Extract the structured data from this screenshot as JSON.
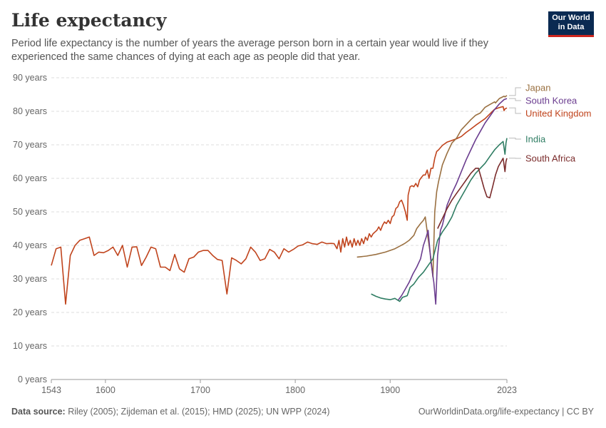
{
  "header": {
    "title": "Life expectancy",
    "subtitle": "Period life expectancy is the number of years the average person born in a certain year would live if they experienced the same chances of dying at each age as people did that year.",
    "logo_line1": "Our World",
    "logo_line2": "in Data"
  },
  "footer": {
    "source_label": "Data source:",
    "source_text": "Riley (2005); Zijdeman et al. (2015); HMD (2025); UN WPP (2024)",
    "url_text": "OurWorldinData.org/life-expectancy | CC BY"
  },
  "colors": {
    "japan": "#9a7041",
    "south_korea": "#6b3d8f",
    "united_kingdom": "#c0441d",
    "india": "#2f7d63",
    "south_africa": "#7a2b2b",
    "grid": "#dddddd",
    "axis_text": "#666666",
    "logo_bg": "#0a2a52",
    "logo_accent": "#ce261e"
  },
  "chart_data": {
    "type": "line",
    "title": "Life expectancy",
    "xlim": [
      1543,
      2023
    ],
    "ylim": [
      0,
      90
    ],
    "x_ticks": [
      {
        "value": 1543,
        "label": "1543"
      },
      {
        "value": 1600,
        "label": "1600"
      },
      {
        "value": 1700,
        "label": "1700"
      },
      {
        "value": 1800,
        "label": "1800"
      },
      {
        "value": 1900,
        "label": "1900"
      },
      {
        "value": 2023,
        "label": "2023"
      }
    ],
    "y_ticks": [
      {
        "value": 0,
        "label": "0 years"
      },
      {
        "value": 10,
        "label": "10 years"
      },
      {
        "value": 20,
        "label": "20 years"
      },
      {
        "value": 30,
        "label": "30 years"
      },
      {
        "value": 40,
        "label": "40 years"
      },
      {
        "value": 50,
        "label": "50 years"
      },
      {
        "value": 60,
        "label": "60 years"
      },
      {
        "value": 70,
        "label": "70 years"
      },
      {
        "value": 80,
        "label": "80 years"
      },
      {
        "value": 90,
        "label": "90 years"
      }
    ],
    "grid": true,
    "legend": "right (line labels)",
    "series": [
      {
        "name": "United Kingdom",
        "color_key": "united_kingdom",
        "points": [
          [
            1543,
            34
          ],
          [
            1548,
            39
          ],
          [
            1553,
            39.5
          ],
          [
            1558,
            22.5
          ],
          [
            1563,
            37
          ],
          [
            1568,
            40
          ],
          [
            1573,
            41.5
          ],
          [
            1578,
            42
          ],
          [
            1583,
            42.5
          ],
          [
            1588,
            37
          ],
          [
            1593,
            38
          ],
          [
            1598,
            37.8
          ],
          [
            1603,
            38.5
          ],
          [
            1608,
            39.5
          ],
          [
            1613,
            37
          ],
          [
            1618,
            40
          ],
          [
            1623,
            33.5
          ],
          [
            1628,
            39.5
          ],
          [
            1633,
            39.6
          ],
          [
            1638,
            34
          ],
          [
            1643,
            36.5
          ],
          [
            1648,
            39.5
          ],
          [
            1653,
            39
          ],
          [
            1658,
            33.5
          ],
          [
            1663,
            33.5
          ],
          [
            1668,
            32.5
          ],
          [
            1673,
            37.3
          ],
          [
            1678,
            33
          ],
          [
            1683,
            32
          ],
          [
            1688,
            36
          ],
          [
            1693,
            36.5
          ],
          [
            1698,
            38
          ],
          [
            1703,
            38.5
          ],
          [
            1708,
            38.5
          ],
          [
            1713,
            37
          ],
          [
            1718,
            35.8
          ],
          [
            1723,
            35.5
          ],
          [
            1728,
            25.5
          ],
          [
            1733,
            36.3
          ],
          [
            1738,
            35.5
          ],
          [
            1743,
            34.5
          ],
          [
            1748,
            36
          ],
          [
            1753,
            39.5
          ],
          [
            1758,
            38
          ],
          [
            1763,
            35.5
          ],
          [
            1768,
            36
          ],
          [
            1773,
            38.8
          ],
          [
            1778,
            38
          ],
          [
            1783,
            36
          ],
          [
            1788,
            39
          ],
          [
            1793,
            38
          ],
          [
            1798,
            38.8
          ],
          [
            1803,
            39.8
          ],
          [
            1808,
            40.2
          ],
          [
            1813,
            41
          ],
          [
            1818,
            40.5
          ],
          [
            1823,
            40.3
          ],
          [
            1828,
            41
          ],
          [
            1833,
            40.5
          ],
          [
            1838,
            40.6
          ],
          [
            1841,
            40.5
          ],
          [
            1844,
            39
          ],
          [
            1846,
            41.5
          ],
          [
            1848,
            38
          ],
          [
            1850,
            42
          ],
          [
            1852,
            39.5
          ],
          [
            1854,
            42.5
          ],
          [
            1856,
            40
          ],
          [
            1858,
            41.5
          ],
          [
            1860,
            39.5
          ],
          [
            1862,
            42
          ],
          [
            1864,
            40
          ],
          [
            1866,
            41.5
          ],
          [
            1868,
            40
          ],
          [
            1870,
            42
          ],
          [
            1872,
            40.5
          ],
          [
            1874,
            42.5
          ],
          [
            1876,
            41.5
          ],
          [
            1878,
            43.5
          ],
          [
            1880,
            42.5
          ],
          [
            1882,
            43.5
          ],
          [
            1884,
            44
          ],
          [
            1886,
            44.5
          ],
          [
            1888,
            45.5
          ],
          [
            1890,
            44.5
          ],
          [
            1892,
            46
          ],
          [
            1894,
            47
          ],
          [
            1896,
            46.5
          ],
          [
            1898,
            47.5
          ],
          [
            1900,
            46.5
          ],
          [
            1902,
            48.5
          ],
          [
            1904,
            49
          ],
          [
            1906,
            51
          ],
          [
            1908,
            51.5
          ],
          [
            1910,
            53
          ],
          [
            1912,
            53.5
          ],
          [
            1914,
            52
          ],
          [
            1916,
            50
          ],
          [
            1918,
            47.5
          ],
          [
            1919,
            55
          ],
          [
            1921,
            57.5
          ],
          [
            1923,
            57.8
          ],
          [
            1925,
            57.5
          ],
          [
            1927,
            58.5
          ],
          [
            1929,
            57.5
          ],
          [
            1931,
            59.5
          ],
          [
            1933,
            60.3
          ],
          [
            1935,
            61
          ],
          [
            1937,
            61
          ],
          [
            1939,
            62.5
          ],
          [
            1941,
            60
          ],
          [
            1943,
            63
          ],
          [
            1945,
            63
          ],
          [
            1947,
            66
          ],
          [
            1949,
            68
          ],
          [
            1951,
            68.5
          ],
          [
            1955,
            69.8
          ],
          [
            1960,
            70.8
          ],
          [
            1965,
            71.3
          ],
          [
            1970,
            71.8
          ],
          [
            1975,
            72.5
          ],
          [
            1980,
            73.7
          ],
          [
            1985,
            74.7
          ],
          [
            1990,
            75.8
          ],
          [
            1995,
            76.8
          ],
          [
            2000,
            77.8
          ],
          [
            2005,
            79.2
          ],
          [
            2010,
            80.6
          ],
          [
            2015,
            81.1
          ],
          [
            2019,
            81.4
          ],
          [
            2020,
            80.2
          ],
          [
            2021,
            80.7
          ],
          [
            2023,
            81
          ]
        ]
      },
      {
        "name": "Japan",
        "color_key": "japan",
        "points": [
          [
            1865,
            36.5
          ],
          [
            1875,
            36.8
          ],
          [
            1885,
            37.3
          ],
          [
            1895,
            38
          ],
          [
            1905,
            39
          ],
          [
            1915,
            40.5
          ],
          [
            1920,
            41.5
          ],
          [
            1925,
            43
          ],
          [
            1928,
            45
          ],
          [
            1932,
            46.5
          ],
          [
            1935,
            47.5
          ],
          [
            1937,
            48.5
          ],
          [
            1940,
            42
          ],
          [
            1943,
            36
          ],
          [
            1945,
            30.5
          ],
          [
            1947,
            50
          ],
          [
            1949,
            56
          ],
          [
            1951,
            59
          ],
          [
            1953,
            61.5
          ],
          [
            1955,
            64
          ],
          [
            1960,
            67.5
          ],
          [
            1965,
            70.5
          ],
          [
            1970,
            72
          ],
          [
            1975,
            74.5
          ],
          [
            1980,
            76
          ],
          [
            1985,
            77.5
          ],
          [
            1990,
            78.8
          ],
          [
            1995,
            79.5
          ],
          [
            2000,
            81.2
          ],
          [
            2005,
            82
          ],
          [
            2010,
            82.8
          ],
          [
            2011,
            82.5
          ],
          [
            2015,
            83.8
          ],
          [
            2020,
            84.5
          ],
          [
            2021,
            84.3
          ],
          [
            2023,
            84.7
          ]
        ]
      },
      {
        "name": "South Korea",
        "color_key": "south_korea",
        "points": [
          [
            1908,
            23.5
          ],
          [
            1912,
            25
          ],
          [
            1916,
            27
          ],
          [
            1920,
            29
          ],
          [
            1924,
            31.5
          ],
          [
            1928,
            33.5
          ],
          [
            1932,
            36
          ],
          [
            1935,
            40
          ],
          [
            1938,
            42.5
          ],
          [
            1940,
            44.5
          ],
          [
            1943,
            35
          ],
          [
            1946,
            29
          ],
          [
            1948,
            22.5
          ],
          [
            1950,
            37
          ],
          [
            1953,
            44.5
          ],
          [
            1955,
            46
          ],
          [
            1960,
            52
          ],
          [
            1965,
            55.5
          ],
          [
            1970,
            58.5
          ],
          [
            1975,
            62
          ],
          [
            1980,
            65.5
          ],
          [
            1985,
            68.5
          ],
          [
            1990,
            71.5
          ],
          [
            1995,
            74
          ],
          [
            2000,
            76.5
          ],
          [
            2005,
            78.5
          ],
          [
            2010,
            80.5
          ],
          [
            2015,
            82.2
          ],
          [
            2020,
            83.5
          ],
          [
            2023,
            83.8
          ]
        ]
      },
      {
        "name": "India",
        "color_key": "india",
        "points": [
          [
            1880,
            25.5
          ],
          [
            1885,
            24.8
          ],
          [
            1890,
            24.3
          ],
          [
            1895,
            24
          ],
          [
            1900,
            23.8
          ],
          [
            1905,
            24.2
          ],
          [
            1910,
            23.3
          ],
          [
            1913,
            24.5
          ],
          [
            1918,
            25
          ],
          [
            1921,
            27.5
          ],
          [
            1925,
            28.5
          ],
          [
            1930,
            30.5
          ],
          [
            1935,
            32
          ],
          [
            1940,
            34
          ],
          [
            1945,
            36
          ],
          [
            1950,
            41.5
          ],
          [
            1955,
            44
          ],
          [
            1960,
            46
          ],
          [
            1965,
            48.5
          ],
          [
            1970,
            52
          ],
          [
            1975,
            54.5
          ],
          [
            1980,
            57
          ],
          [
            1985,
            59.5
          ],
          [
            1990,
            61.5
          ],
          [
            1995,
            63
          ],
          [
            2000,
            64.5
          ],
          [
            2005,
            66.5
          ],
          [
            2010,
            68.5
          ],
          [
            2015,
            70
          ],
          [
            2019,
            71
          ],
          [
            2021,
            67.2
          ],
          [
            2022,
            70.5
          ],
          [
            2023,
            72
          ]
        ]
      },
      {
        "name": "South Africa",
        "color_key": "south_africa",
        "points": [
          [
            1950,
            45
          ],
          [
            1955,
            48
          ],
          [
            1960,
            51
          ],
          [
            1965,
            53.5
          ],
          [
            1970,
            55.5
          ],
          [
            1975,
            57.5
          ],
          [
            1980,
            59.5
          ],
          [
            1985,
            61.5
          ],
          [
            1990,
            63
          ],
          [
            1993,
            63
          ],
          [
            1996,
            60
          ],
          [
            1999,
            57
          ],
          [
            2002,
            54.5
          ],
          [
            2005,
            54.2
          ],
          [
            2008,
            57.5
          ],
          [
            2011,
            61
          ],
          [
            2014,
            63.5
          ],
          [
            2017,
            65
          ],
          [
            2019,
            66
          ],
          [
            2021,
            62
          ],
          [
            2022,
            65
          ],
          [
            2023,
            66
          ]
        ]
      }
    ]
  }
}
